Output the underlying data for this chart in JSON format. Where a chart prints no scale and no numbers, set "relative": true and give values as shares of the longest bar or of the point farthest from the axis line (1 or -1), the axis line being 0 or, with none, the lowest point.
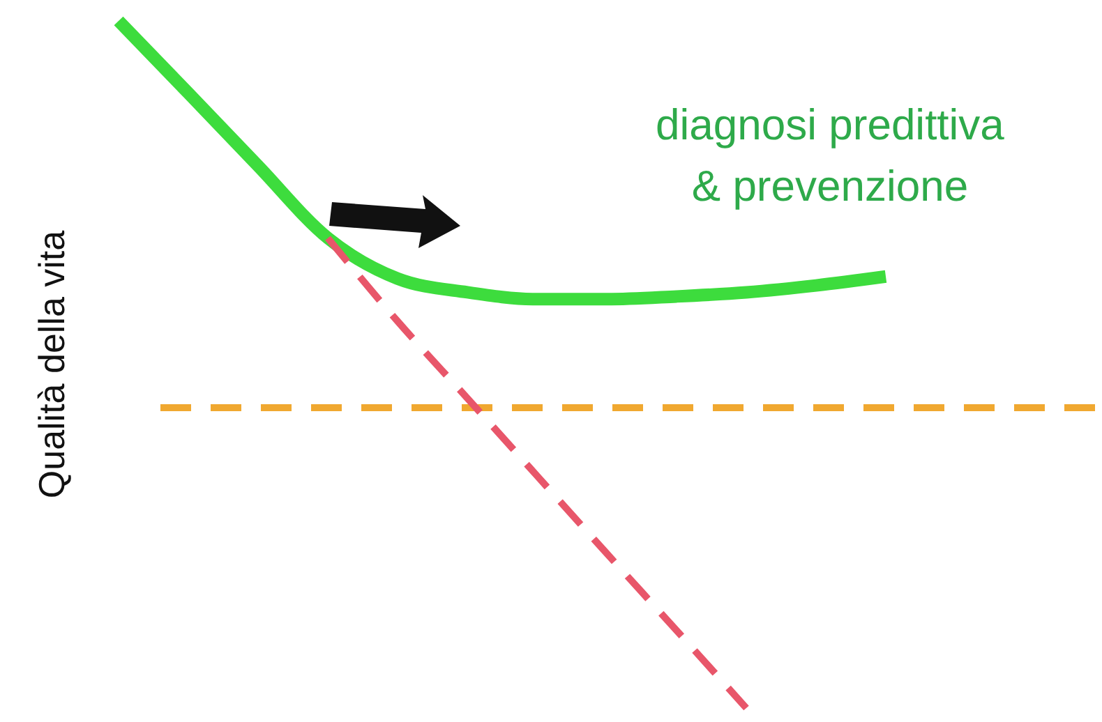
{
  "chart_data": {
    "type": "line",
    "relative": true,
    "ylabel": "Qualità della vita",
    "categories": [
      null,
      null,
      null,
      null,
      null,
      null,
      null,
      null,
      null,
      null,
      null,
      null,
      null,
      null,
      null
    ],
    "series": [
      {
        "color": "#3ddc3d",
        "line_style": "solid",
        "values": [
          1,
          0.895,
          0.789,
          0.684,
          0.625,
          0.605,
          0.595,
          0.595,
          0.599,
          0.605,
          0.615,
          0.628,
          null,
          null,
          null
        ]
      },
      {
        "color": "#e8566a",
        "line_style": "dashed",
        "values": [
          null,
          null,
          null,
          0.684,
          0.563,
          0.451,
          0.338,
          0.225,
          0.113,
          0,
          null,
          null,
          null,
          null,
          null
        ]
      }
    ],
    "ref_lines": [
      {
        "axis": "y",
        "value": 0.437,
        "color": "#f0a830",
        "line_style": "dashed"
      }
    ],
    "annotations": [
      "diagnosi predittiva\n& prevenzione"
    ]
  }
}
